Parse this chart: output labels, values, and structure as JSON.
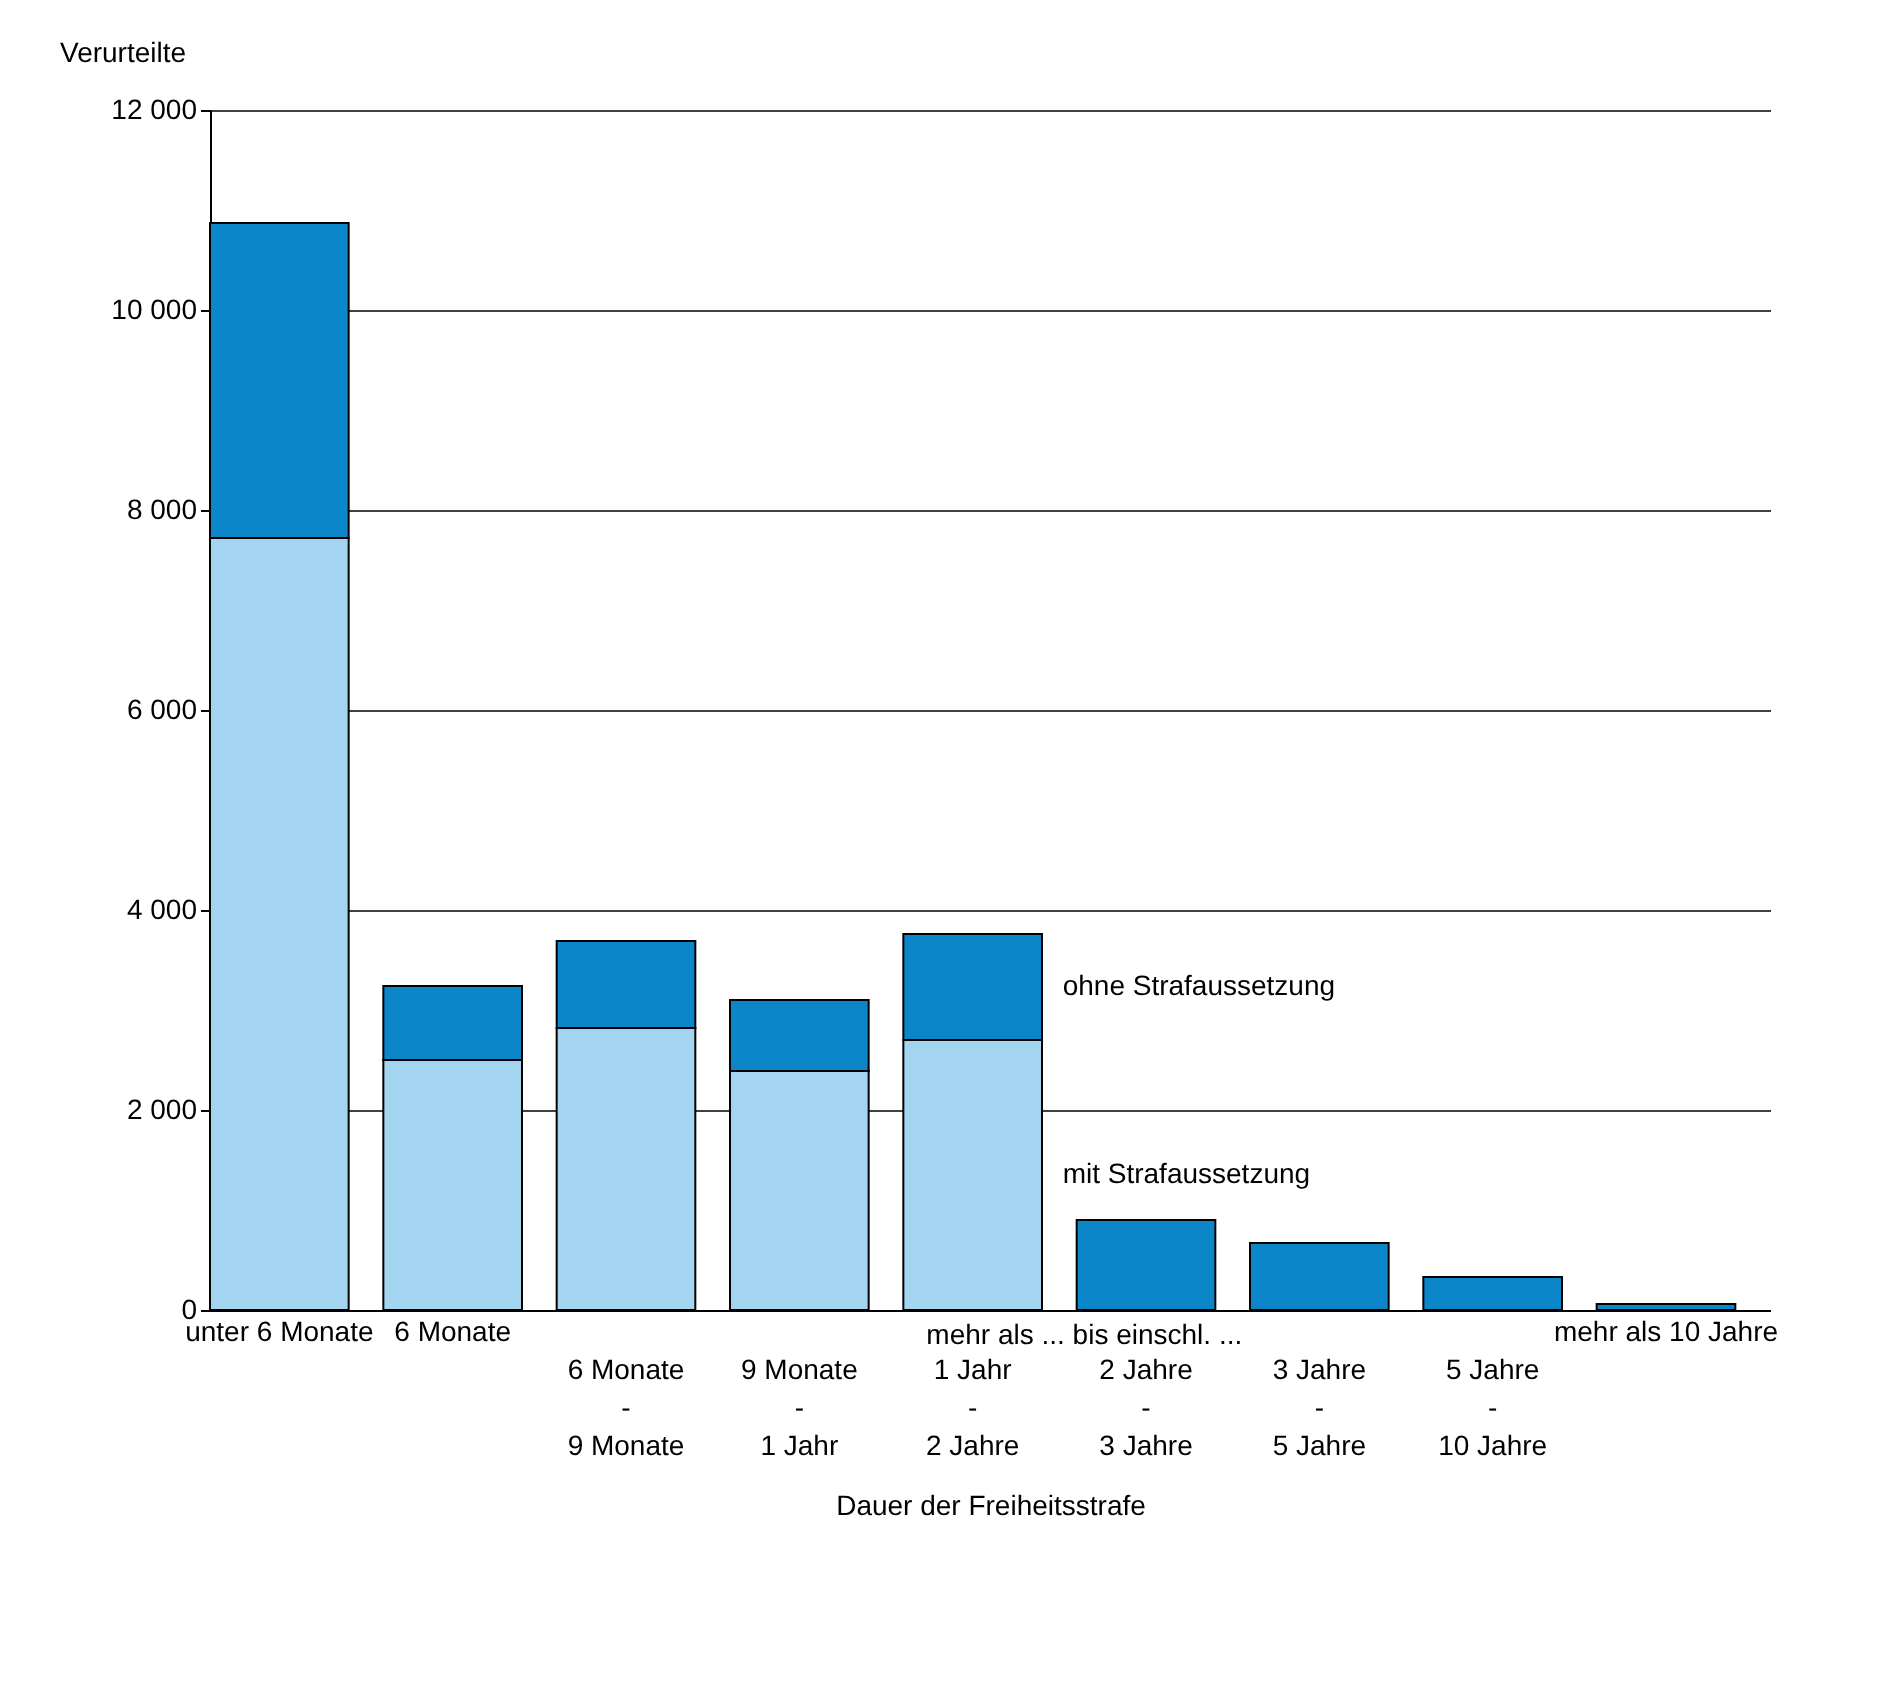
{
  "chart_data": {
    "type": "bar",
    "stacked": true,
    "xlabel": "Dauer der Freiheitsstrafe",
    "ylabel": "Verurteilte",
    "categories": [
      "unter 6 Monate",
      "6 Monate",
      "6 Monate\n-\n9 Monate",
      "9 Monate\n-\n1 Jahr",
      "1 Jahr\n-\n2 Jahre",
      "2 Jahre\n-\n3 Jahre",
      "3 Jahre\n-\n5 Jahre",
      "5 Jahre\n-\n10 Jahre",
      "mehr als 10 Jahre"
    ],
    "series": [
      {
        "name": "mit Strafaussetzung",
        "color": "#a3d4f0",
        "values": [
          7720,
          2500,
          2820,
          2390,
          2700,
          null,
          null,
          null,
          null
        ]
      },
      {
        "name": "ohne Strafaussetzung",
        "color": "#0a86c9",
        "values": [
          3150,
          740,
          870,
          710,
          1060,
          900,
          670,
          330,
          60
        ]
      }
    ],
    "ylim": [
      0,
      12000
    ],
    "yticks": [
      {
        "value": 0,
        "label": "0"
      },
      {
        "value": 2000,
        "label": "2 000"
      },
      {
        "value": 4000,
        "label": "4 000"
      },
      {
        "value": 6000,
        "label": "6 000"
      },
      {
        "value": 8000,
        "label": "8 000"
      },
      {
        "value": 10000,
        "label": "10 000"
      },
      {
        "value": 12000,
        "label": "12 000"
      }
    ],
    "grid": "y",
    "legend": false,
    "annotations": [
      "mehr als ... bis einschl. ..."
    ]
  }
}
